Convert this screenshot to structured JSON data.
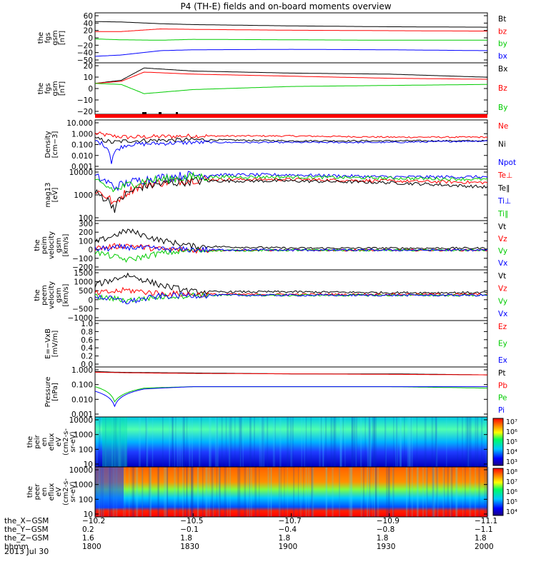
{
  "title": "P4 (TH-E) fields and on-board moments overview",
  "panels": [
    {
      "id": "fgs-gsm",
      "ylabel": [
        "the",
        "fgs",
        "gsm",
        "[nT]"
      ],
      "ticks": [
        "60",
        "40",
        "20",
        "0",
        "−20",
        "−40",
        "−50"
      ],
      "legend": [
        {
          "text": "Bt",
          "color": "#000000"
        },
        {
          "text": "bz",
          "color": "#ff0000"
        },
        {
          "text": "by",
          "color": "#00cc00"
        },
        {
          "text": "bx",
          "color": "#0000ff"
        }
      ]
    },
    {
      "id": "fgs-gse",
      "ylabel": [
        "the",
        "fgs",
        "gsm",
        "[nT]"
      ],
      "ticks": [
        "20",
        "10",
        "0",
        "−10",
        "−20"
      ],
      "legend": [
        {
          "text": "Bx",
          "color": "#000000"
        },
        {
          "text": "Bz",
          "color": "#ff0000"
        },
        {
          "text": "By",
          "color": "#00cc00"
        }
      ]
    },
    {
      "id": "density",
      "ylabel": [
        "Density",
        "[cm−3]"
      ],
      "ticks": [
        "10.000",
        "1.000",
        "0.100",
        "0.010",
        "0.001"
      ],
      "legend": [
        {
          "text": "Ne",
          "color": "#ff0000"
        },
        {
          "text": "Ni",
          "color": "#000000"
        },
        {
          "text": "Npot",
          "color": "#0000ff"
        }
      ]
    },
    {
      "id": "temperature",
      "ylabel": [
        "mag13",
        "[eV]"
      ],
      "ticks": [
        "10000",
        "1000",
        "100"
      ],
      "legend": [
        {
          "text": "Te⊥",
          "color": "#ff0000"
        },
        {
          "text": "Te∥",
          "color": "#000000"
        },
        {
          "text": "Ti⊥",
          "color": "#0000ff"
        },
        {
          "text": "Ti∥",
          "color": "#00cc00"
        }
      ]
    },
    {
      "id": "peim-velocity",
      "ylabel": [
        "the",
        "peim",
        "velocity",
        "gsm",
        "[km/s]"
      ],
      "ticks": [
        "300",
        "200",
        "100",
        "0",
        "−100",
        "−200"
      ],
      "legend": [
        {
          "text": "Vt",
          "color": "#000000"
        },
        {
          "text": "Vz",
          "color": "#ff0000"
        },
        {
          "text": "Vy",
          "color": "#00cc00"
        },
        {
          "text": "Vx",
          "color": "#0000ff"
        }
      ]
    },
    {
      "id": "peem-velocity",
      "ylabel": [
        "the",
        "peem",
        "velocity",
        "gsm",
        "[km/s]"
      ],
      "ticks": [
        "1500",
        "1000",
        "500",
        "0",
        "−500",
        "−1000"
      ],
      "legend": [
        {
          "text": "Vt",
          "color": "#000000"
        },
        {
          "text": "Vz",
          "color": "#ff0000"
        },
        {
          "text": "Vy",
          "color": "#00cc00"
        },
        {
          "text": "Vx",
          "color": "#0000ff"
        }
      ]
    },
    {
      "id": "efield",
      "ylabel": [
        "E=−VxB",
        "[mV/m]"
      ],
      "ticks": [
        "1.0",
        "0.8",
        "0.6",
        "0.4",
        "0.2",
        "0.0"
      ],
      "legend": [
        {
          "text": "Ez",
          "color": "#ff0000"
        },
        {
          "text": "Ey",
          "color": "#00cc00"
        },
        {
          "text": "Ex",
          "color": "#0000ff"
        }
      ]
    },
    {
      "id": "pressure",
      "ylabel": [
        "Pressure",
        "[nPa]"
      ],
      "ticks": [
        "1.000",
        "0.100",
        "0.010",
        "0.001"
      ],
      "legend": [
        {
          "text": "Pt",
          "color": "#000000"
        },
        {
          "text": "Pb",
          "color": "#ff0000"
        },
        {
          "text": "Pe",
          "color": "#00cc00"
        },
        {
          "text": "Pi",
          "color": "#0000ff"
        }
      ]
    },
    {
      "id": "peir-eflux",
      "ylabel": [
        "the",
        "peir",
        "en",
        "eflux",
        "eV",
        "(cm2-s-",
        "sr-eV)"
      ],
      "ticks": [
        "10000",
        "1000",
        "100",
        "10"
      ],
      "cbar": [
        "10⁷",
        "10⁶",
        "10⁵",
        "10⁴",
        "10³"
      ]
    },
    {
      "id": "peer-eflux",
      "ylabel": [
        "the",
        "peer",
        "en",
        "eflux",
        "eV",
        "(cm2-s-",
        "sr-eV)"
      ],
      "ticks": [
        "10000",
        "1000",
        "100",
        "10"
      ],
      "cbar": [
        "10⁸",
        "10⁷",
        "10⁶",
        "10⁵",
        "10⁴"
      ]
    }
  ],
  "xaxis": {
    "rows": [
      {
        "label": "the_X−GSM",
        "values": [
          "−10.2",
          "−10.5",
          "−10.7",
          "−10.9",
          "−11.1"
        ]
      },
      {
        "label": "the_Y−GSM",
        "values": [
          "0.2",
          "−0.1",
          "−0.4",
          "−0.8",
          "−1.1"
        ]
      },
      {
        "label": "the_Z−GSM",
        "values": [
          "1.6",
          "1.8",
          "1.8",
          "1.8",
          "1.8"
        ]
      },
      {
        "label": "hhmm",
        "values": [
          "1800",
          "1830",
          "1900",
          "1930",
          "2000"
        ]
      }
    ],
    "date": "2013 Jul 30"
  },
  "chart_data": {
    "type": "line",
    "title": "P4 (TH-E) fields and on-board moments overview",
    "x_unit": "hhmm",
    "x_ticks": [
      "1800",
      "1830",
      "1900",
      "1930",
      "2000"
    ],
    "panels": [
      {
        "id": "fgs-gsm",
        "ylim": [
          -50,
          65
        ],
        "series": [
          {
            "name": "Bt",
            "color": "#000000",
            "x": [
              "1800",
              "1808",
              "1820",
              "1830",
              "1900",
              "1930",
              "2000"
            ],
            "values": [
              45,
              44,
              40,
              38,
              35,
              33,
              32
            ]
          },
          {
            "name": "bz",
            "color": "#ff0000",
            "x": [
              "1800",
              "1808",
              "1820",
              "1830",
              "1900",
              "1930",
              "2000"
            ],
            "values": [
              22,
              22,
              28,
              27,
              25,
              24,
              23
            ]
          },
          {
            "name": "by",
            "color": "#00cc00",
            "x": [
              "1800",
              "1808",
              "1820",
              "1830",
              "1900",
              "1930",
              "2000"
            ],
            "values": [
              5,
              3,
              2,
              4,
              3,
              2,
              2
            ]
          },
          {
            "name": "bx",
            "color": "#0000ff",
            "x": [
              "1800",
              "1808",
              "1820",
              "1830",
              "1900",
              "1930",
              "2000"
            ],
            "values": [
              -35,
              -32,
              -22,
              -20,
              -19,
              -20,
              -22
            ]
          }
        ]
      },
      {
        "id": "fgs-gse",
        "ylim": [
          -25,
          25
        ],
        "series": [
          {
            "name": "Bx",
            "color": "#000000",
            "x": [
              "1800",
              "1808",
              "1815",
              "1830",
              "1900",
              "1930",
              "2000"
            ],
            "values": [
              5,
              8,
              20,
              17,
              15,
              14,
              11
            ]
          },
          {
            "name": "Bz",
            "color": "#ff0000",
            "x": [
              "1800",
              "1808",
              "1815",
              "1830",
              "1900",
              "1930",
              "2000"
            ],
            "values": [
              5,
              7,
              16,
              14,
              12,
              10,
              9
            ]
          },
          {
            "name": "By",
            "color": "#00cc00",
            "x": [
              "1800",
              "1808",
              "1815",
              "1830",
              "1900",
              "1930",
              "2000"
            ],
            "values": [
              5,
              4,
              -5,
              -1,
              2,
              3,
              4
            ]
          }
        ]
      },
      {
        "id": "density",
        "ylim": [
          0.001,
          10
        ],
        "log": true,
        "series": [
          {
            "name": "Ne",
            "color": "#ff0000",
            "x": [
              "1800",
              "1805",
              "1810",
              "1830",
              "1900",
              "1930",
              "2000"
            ],
            "values": [
              0.8,
              0.5,
              0.4,
              0.5,
              0.5,
              0.4,
              0.4
            ]
          },
          {
            "name": "Ni",
            "color": "#000000",
            "x": [
              "1800",
              "1805",
              "1810",
              "1830",
              "1900",
              "1930",
              "2000"
            ],
            "values": [
              0.3,
              0.15,
              0.2,
              0.25,
              0.2,
              0.2,
              0.2
            ]
          },
          {
            "name": "Npot",
            "color": "#0000ff",
            "x": [
              "1800",
              "1805",
              "1810",
              "1830",
              "1900",
              "1930",
              "2000"
            ],
            "values": [
              0.2,
              0.003,
              0.1,
              0.15,
              0.15,
              0.15,
              0.2
            ]
          }
        ]
      },
      {
        "id": "temperature",
        "ylim": [
          100,
          10000
        ],
        "log": true,
        "series": [
          {
            "name": "Te⊥",
            "color": "#ff0000",
            "x": [
              "1800",
              "1806",
              "1815",
              "1830",
              "1900",
              "1930",
              "2000"
            ],
            "values": [
              1500,
              400,
              2500,
              4000,
              4000,
              3500,
              3000
            ]
          },
          {
            "name": "Te∥",
            "color": "#000000",
            "x": [
              "1800",
              "1806",
              "1815",
              "1830",
              "1900",
              "1930",
              "2000"
            ],
            "values": [
              1200,
              300,
              2200,
              3500,
              3500,
              3000,
              2000
            ]
          },
          {
            "name": "Ti⊥",
            "color": "#0000ff",
            "x": [
              "1800",
              "1806",
              "1815",
              "1830",
              "1900",
              "1930",
              "2000"
            ],
            "values": [
              5000,
              2000,
              4000,
              6000,
              6000,
              5000,
              5000
            ]
          },
          {
            "name": "Ti∥",
            "color": "#00cc00",
            "x": [
              "1800",
              "1806",
              "1815",
              "1830",
              "1900",
              "1930",
              "2000"
            ],
            "values": [
              3000,
              1500,
              3500,
              5000,
              5000,
              4500,
              4000
            ]
          }
        ]
      },
      {
        "id": "peim-velocity",
        "ylim": [
          -200,
          300
        ],
        "series": [
          {
            "name": "Vt",
            "color": "#000000",
            "x": [
              "1800",
              "1810",
              "1820",
              "1830",
              "1900",
              "1930",
              "2000"
            ],
            "values": [
              80,
              200,
              100,
              40,
              20,
              20,
              20
            ]
          },
          {
            "name": "Vz",
            "color": "#ff0000",
            "x": [
              "1800",
              "1810",
              "1820",
              "1830",
              "1900",
              "1930",
              "2000"
            ],
            "values": [
              20,
              50,
              10,
              0,
              0,
              0,
              0
            ]
          },
          {
            "name": "Vy",
            "color": "#00cc00",
            "x": [
              "1800",
              "1810",
              "1820",
              "1830",
              "1900",
              "1930",
              "2000"
            ],
            "values": [
              -20,
              -100,
              -30,
              -5,
              0,
              0,
              0
            ]
          },
          {
            "name": "Vx",
            "color": "#0000ff",
            "x": [
              "1800",
              "1810",
              "1820",
              "1830",
              "1900",
              "1930",
              "2000"
            ],
            "values": [
              10,
              30,
              10,
              5,
              0,
              0,
              0
            ]
          }
        ]
      },
      {
        "id": "peem-velocity",
        "ylim": [
          -1500,
          1500
        ],
        "series": [
          {
            "name": "Vt",
            "color": "#000000",
            "x": [
              "1800",
              "1810",
              "1820",
              "1830",
              "1900",
              "1930",
              "2000"
            ],
            "values": [
              600,
              1200,
              600,
              200,
              200,
              150,
              150
            ]
          },
          {
            "name": "Vz",
            "color": "#ff0000",
            "x": [
              "1800",
              "1810",
              "1820",
              "1830",
              "1900",
              "1930",
              "2000"
            ],
            "values": [
              100,
              300,
              100,
              50,
              50,
              50,
              50
            ]
          },
          {
            "name": "Vy",
            "color": "#00cc00",
            "x": [
              "1800",
              "1810",
              "1820",
              "1830",
              "1900",
              "1930",
              "2000"
            ],
            "values": [
              -100,
              -300,
              -100,
              0,
              0,
              0,
              0
            ]
          },
          {
            "name": "Vx",
            "color": "#0000ff",
            "x": [
              "1800",
              "1810",
              "1820",
              "1830",
              "1900",
              "1930",
              "2000"
            ],
            "values": [
              -50,
              -400,
              -50,
              0,
              0,
              0,
              0
            ]
          }
        ]
      },
      {
        "id": "efield",
        "ylim": [
          0,
          1
        ],
        "series": []
      },
      {
        "id": "pressure",
        "ylim": [
          0.001,
          2
        ],
        "log": true,
        "series": [
          {
            "name": "Pt",
            "color": "#000000",
            "x": [
              "1800",
              "1806",
              "1815",
              "1830",
              "1900",
              "1930",
              "2000"
            ],
            "values": [
              1.0,
              0.9,
              0.85,
              0.8,
              0.7,
              0.7,
              0.6
            ]
          },
          {
            "name": "Pb",
            "color": "#ff0000",
            "x": [
              "1800",
              "1806",
              "1815",
              "1830",
              "1900",
              "1930",
              "2000"
            ],
            "values": [
              0.9,
              0.85,
              0.8,
              0.75,
              0.7,
              0.65,
              0.6
            ]
          },
          {
            "name": "Pe",
            "color": "#00cc00",
            "x": [
              "1800",
              "1806",
              "1815",
              "1830",
              "1900",
              "1930",
              "2000"
            ],
            "values": [
              0.1,
              0.01,
              0.08,
              0.1,
              0.1,
              0.1,
              0.08
            ]
          },
          {
            "name": "Pi",
            "color": "#0000ff",
            "x": [
              "1800",
              "1806",
              "1815",
              "1830",
              "1900",
              "1930",
              "2000"
            ],
            "values": [
              0.05,
              0.005,
              0.07,
              0.1,
              0.1,
              0.1,
              0.1
            ]
          }
        ]
      },
      {
        "id": "peir-eflux",
        "type": "heatmap",
        "ylim": [
          10,
          20000
        ],
        "log": true
      },
      {
        "id": "peer-eflux",
        "type": "heatmap",
        "ylim": [
          10,
          20000
        ],
        "log": true
      }
    ]
  }
}
